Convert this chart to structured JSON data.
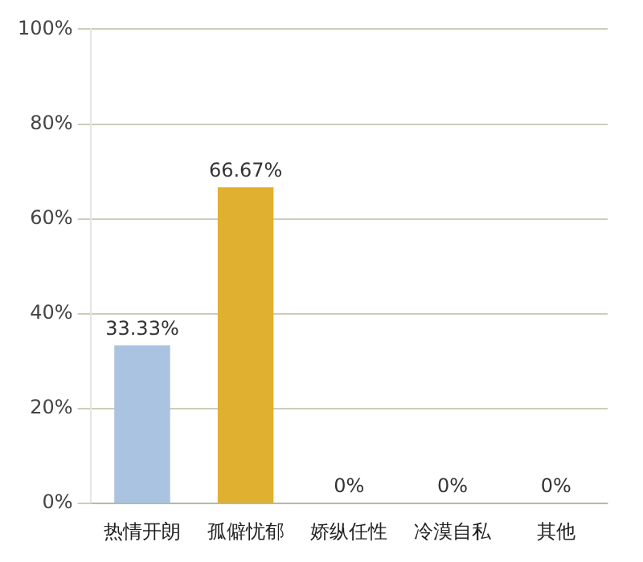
{
  "chart_data": {
    "type": "bar",
    "categories": [
      "热情开朗",
      "孤僻忧郁",
      "娇纵任性",
      "冷漠自私",
      "其他"
    ],
    "values": [
      33.33,
      66.67,
      0,
      0,
      0
    ],
    "colors": [
      "#a9c3e0",
      "#e0b030",
      "#9bbb59",
      "#f0a47a",
      "#4aacb0"
    ],
    "value_labels": [
      "33.33%",
      "66.67%",
      "0%",
      "0%",
      "0%"
    ],
    "ylim": [
      0,
      100
    ],
    "yticks": [
      {
        "value": 0,
        "label": "0%"
      },
      {
        "value": 20,
        "label": "20%"
      },
      {
        "value": 40,
        "label": "40%"
      },
      {
        "value": 60,
        "label": "60%"
      },
      {
        "value": 80,
        "label": "80%"
      },
      {
        "value": 100,
        "label": "100%"
      }
    ],
    "grid": "y",
    "legend": false
  }
}
